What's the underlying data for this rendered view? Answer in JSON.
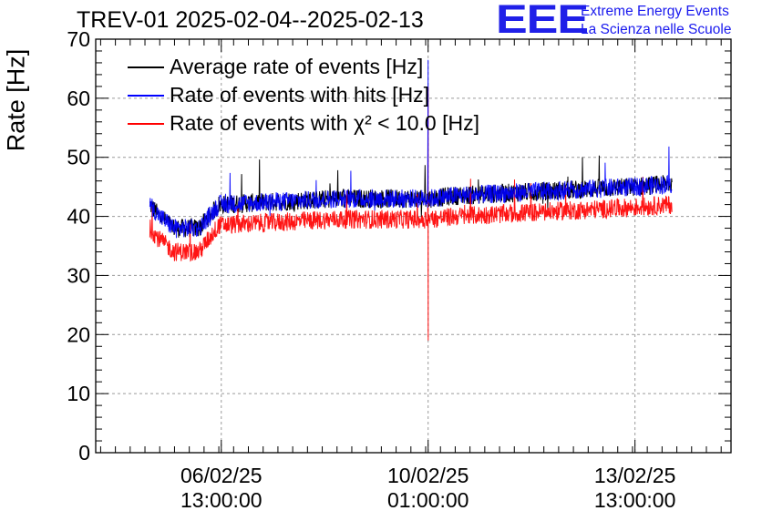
{
  "chart_data": {
    "type": "line",
    "title": "TREV-01 2025-02-04--2025-02-13",
    "ylabel": "Rate [Hz]",
    "ylim": [
      0,
      70
    ],
    "yticks": [
      0,
      10,
      20,
      30,
      40,
      50,
      60,
      70
    ],
    "xticks": [
      {
        "date": "06/02/25",
        "time": "13:00:00",
        "x": "2025-02-06T13:00:00"
      },
      {
        "date": "10/02/25",
        "time": "01:00:00",
        "x": "2025-02-10T01:00:00"
      },
      {
        "date": "13/02/25",
        "time": "13:00:00",
        "x": "2025-02-13T13:00:00"
      }
    ],
    "xlim": [
      "2025-02-04T10:00:00",
      "2025-02-15T04:00:00"
    ],
    "grid": true,
    "legend_position": "top-left",
    "series": [
      {
        "name": "Average rate of events [Hz]",
        "color": "#000000",
        "x": [
          "2025-02-05T08:00:00",
          "2025-02-05T12:00:00",
          "2025-02-05T18:00:00",
          "2025-02-06T00:00:00",
          "2025-02-06T04:00:00",
          "2025-02-06T12:00:00",
          "2025-02-07T12:00:00",
          "2025-02-08T12:00:00",
          "2025-02-09T12:00:00",
          "2025-02-10T01:00:00",
          "2025-02-10T12:00:00",
          "2025-02-11T12:00:00",
          "2025-02-12T12:00:00",
          "2025-02-13T12:00:00",
          "2025-02-14T04:00:00"
        ],
        "values": [
          42,
          40,
          38,
          38,
          38,
          42,
          42.5,
          43,
          43,
          43,
          43.5,
          44,
          44.5,
          45,
          45.5
        ]
      },
      {
        "name": "Rate of events with hits [Hz]",
        "color": "#0000ff",
        "x": [
          "2025-02-05T08:00:00",
          "2025-02-05T12:00:00",
          "2025-02-05T18:00:00",
          "2025-02-06T00:00:00",
          "2025-02-06T04:00:00",
          "2025-02-06T12:00:00",
          "2025-02-07T12:00:00",
          "2025-02-08T12:00:00",
          "2025-02-09T12:00:00",
          "2025-02-10T01:00:00",
          "2025-02-10T12:00:00",
          "2025-02-11T12:00:00",
          "2025-02-12T12:00:00",
          "2025-02-13T12:00:00",
          "2025-02-14T04:00:00"
        ],
        "values": [
          42,
          40,
          38,
          38,
          38,
          42,
          42.5,
          43,
          43,
          43,
          43.5,
          44,
          44.5,
          45,
          45.5
        ]
      },
      {
        "name": "Rate of events with χ² < 10.0 [Hz]",
        "color": "#ff0000",
        "x": [
          "2025-02-05T08:00:00",
          "2025-02-05T12:00:00",
          "2025-02-05T18:00:00",
          "2025-02-06T00:00:00",
          "2025-02-06T04:00:00",
          "2025-02-06T12:00:00",
          "2025-02-07T12:00:00",
          "2025-02-08T12:00:00",
          "2025-02-09T12:00:00",
          "2025-02-10T01:00:00",
          "2025-02-10T12:00:00",
          "2025-02-11T12:00:00",
          "2025-02-12T12:00:00",
          "2025-02-13T12:00:00",
          "2025-02-14T04:00:00"
        ],
        "values": [
          38,
          36,
          34,
          34,
          34,
          38.5,
          39,
          39.5,
          39.5,
          39.5,
          40,
          40.5,
          41,
          41.5,
          42
        ]
      }
    ],
    "annotations": {
      "logo": "EEE",
      "logo_line1": "Extreme Energy Events",
      "logo_line2": "La Scienza nelle Scuole"
    }
  }
}
